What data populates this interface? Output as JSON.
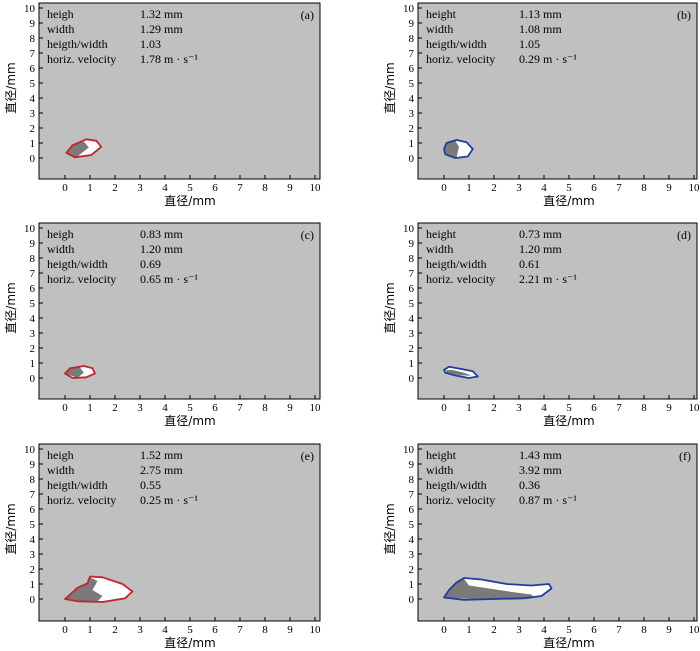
{
  "chart_data": [
    {
      "type": "scatter",
      "tag": "(a)",
      "xlabel": "直径/mm",
      "ylabel": "直径/mm",
      "xlim": [
        0,
        10
      ],
      "ylim": [
        0,
        10
      ],
      "xticks": [
        "0",
        "1",
        "2",
        "3",
        "4",
        "5",
        "6",
        "7",
        "8",
        "9",
        "10"
      ],
      "yticks": [
        "0",
        "1",
        "2",
        "3",
        "4",
        "5",
        "6",
        "7",
        "8",
        "9",
        "10"
      ],
      "info": [
        {
          "name": "heigh",
          "value": "1.32 mm"
        },
        {
          "name": "width",
          "value": "1.29 mm"
        },
        {
          "name": "heigth/width",
          "value": "1.03"
        },
        {
          "name": "horiz. velocity",
          "value": "1.78 m · s⁻¹"
        }
      ],
      "outline_color": "#c0262a",
      "outline": [
        [
          0.05,
          0.35
        ],
        [
          0.3,
          0.85
        ],
        [
          0.85,
          1.25
        ],
        [
          1.25,
          1.15
        ],
        [
          1.45,
          0.75
        ],
        [
          1.05,
          0.2
        ],
        [
          0.4,
          0.05
        ],
        [
          0.05,
          0.35
        ]
      ],
      "shaded": [
        [
          0.05,
          0.35
        ],
        [
          0.3,
          0.85
        ],
        [
          0.75,
          1.1
        ],
        [
          0.95,
          0.7
        ],
        [
          0.45,
          0.05
        ],
        [
          0.05,
          0.35
        ]
      ]
    },
    {
      "type": "scatter",
      "tag": "(b)",
      "xlabel": "直径/mm",
      "ylabel": "直径/mm",
      "xlim": [
        0,
        10
      ],
      "ylim": [
        0,
        10
      ],
      "xticks": [
        "0",
        "1",
        "2",
        "3",
        "4",
        "5",
        "6",
        "7",
        "8",
        "9",
        "10"
      ],
      "yticks": [
        "0",
        "1",
        "2",
        "3",
        "4",
        "5",
        "6",
        "7",
        "8",
        "9",
        "10"
      ],
      "info": [
        {
          "name": "height",
          "value": "1.13 mm"
        },
        {
          "name": "width",
          "value": "1.08 mm"
        },
        {
          "name": "heigth/width",
          "value": "1.05"
        },
        {
          "name": "horiz. velocity",
          "value": "0.29 m · s⁻¹"
        }
      ],
      "outline_color": "#1f3e9c",
      "outline": [
        [
          0.0,
          0.6
        ],
        [
          0.1,
          1.0
        ],
        [
          0.5,
          1.2
        ],
        [
          0.9,
          1.05
        ],
        [
          1.15,
          0.6
        ],
        [
          0.95,
          0.1
        ],
        [
          0.45,
          0.0
        ],
        [
          0.05,
          0.25
        ],
        [
          0.0,
          0.6
        ]
      ],
      "shaded": [
        [
          0.0,
          0.6
        ],
        [
          0.1,
          1.0
        ],
        [
          0.45,
          1.15
        ],
        [
          0.6,
          0.75
        ],
        [
          0.5,
          0.02
        ],
        [
          0.05,
          0.25
        ],
        [
          0.0,
          0.6
        ]
      ]
    },
    {
      "type": "scatter",
      "tag": "(c)",
      "xlabel": "直径/mm",
      "ylabel": "直径/mm",
      "xlim": [
        0,
        10
      ],
      "ylim": [
        0,
        10
      ],
      "xticks": [
        "0",
        "1",
        "2",
        "3",
        "4",
        "5",
        "6",
        "7",
        "8",
        "9",
        "10"
      ],
      "yticks": [
        "0",
        "1",
        "2",
        "3",
        "4",
        "5",
        "6",
        "7",
        "8",
        "9",
        "10"
      ],
      "info": [
        {
          "name": "heigh",
          "value": "0.83 mm"
        },
        {
          "name": "width",
          "value": "1.20 mm"
        },
        {
          "name": "heigth/width",
          "value": "0.69"
        },
        {
          "name": "horiz. velocity",
          "value": "0.65 m · s⁻¹"
        }
      ],
      "outline_color": "#c0262a",
      "outline": [
        [
          0.0,
          0.3
        ],
        [
          0.2,
          0.65
        ],
        [
          0.75,
          0.8
        ],
        [
          1.1,
          0.65
        ],
        [
          1.2,
          0.3
        ],
        [
          0.85,
          0.05
        ],
        [
          0.3,
          0.0
        ],
        [
          0.0,
          0.3
        ]
      ],
      "shaded": [
        [
          0.0,
          0.3
        ],
        [
          0.2,
          0.65
        ],
        [
          0.6,
          0.7
        ],
        [
          0.75,
          0.35
        ],
        [
          0.5,
          0.02
        ],
        [
          0.0,
          0.3
        ]
      ]
    },
    {
      "type": "scatter",
      "tag": "(d)",
      "xlabel": "直径/mm",
      "ylabel": "直径/mm",
      "xlim": [
        0,
        10
      ],
      "ylim": [
        0,
        10
      ],
      "xticks": [
        "0",
        "1",
        "2",
        "3",
        "4",
        "5",
        "6",
        "7",
        "8",
        "9",
        "10"
      ],
      "yticks": [
        "0",
        "1",
        "2",
        "3",
        "4",
        "5",
        "6",
        "7",
        "8",
        "9",
        "10"
      ],
      "info": [
        {
          "name": "height",
          "value": "0.73 mm"
        },
        {
          "name": "width",
          "value": "1.20 mm"
        },
        {
          "name": "heigth/width",
          "value": "0.61"
        },
        {
          "name": "horiz. velocity",
          "value": "2.21 m · s⁻¹"
        }
      ],
      "outline_color": "#1f3e9c",
      "outline": [
        [
          0.0,
          0.55
        ],
        [
          0.2,
          0.75
        ],
        [
          0.7,
          0.6
        ],
        [
          1.15,
          0.45
        ],
        [
          1.35,
          0.1
        ],
        [
          1.0,
          0.0
        ],
        [
          0.5,
          0.15
        ],
        [
          0.05,
          0.35
        ],
        [
          0.0,
          0.55
        ]
      ],
      "shaded": [
        [
          0.05,
          0.5
        ],
        [
          0.3,
          0.55
        ],
        [
          0.8,
          0.35
        ],
        [
          1.1,
          0.15
        ],
        [
          0.6,
          0.18
        ],
        [
          0.1,
          0.38
        ],
        [
          0.05,
          0.5
        ]
      ]
    },
    {
      "type": "scatter",
      "tag": "(e)",
      "xlabel": "直径/mm",
      "ylabel": "直径/mm",
      "xlim": [
        0,
        10
      ],
      "ylim": [
        0,
        10
      ],
      "xticks": [
        "0",
        "1",
        "2",
        "3",
        "4",
        "5",
        "6",
        "7",
        "8",
        "9",
        "10"
      ],
      "yticks": [
        "0",
        "1",
        "2",
        "3",
        "4",
        "5",
        "6",
        "7",
        "8",
        "9",
        "10"
      ],
      "info": [
        {
          "name": "heigh",
          "value": "1.52 mm"
        },
        {
          "name": "width",
          "value": "2.75 mm"
        },
        {
          "name": "heigth/width",
          "value": "0.55"
        },
        {
          "name": "horiz. velocity",
          "value": "0.25 m · s⁻¹"
        }
      ],
      "outline_color": "#c0262a",
      "outline": [
        [
          0.0,
          0.0
        ],
        [
          0.2,
          0.3
        ],
        [
          0.5,
          0.75
        ],
        [
          0.9,
          1.05
        ],
        [
          1.0,
          1.5
        ],
        [
          1.5,
          1.45
        ],
        [
          2.3,
          1.0
        ],
        [
          2.7,
          0.5
        ],
        [
          2.4,
          0.05
        ],
        [
          1.5,
          -0.2
        ],
        [
          0.5,
          -0.15
        ],
        [
          0.0,
          0.0
        ]
      ],
      "shaded": [
        [
          0.0,
          0.0
        ],
        [
          0.2,
          0.3
        ],
        [
          0.5,
          0.75
        ],
        [
          0.9,
          1.05
        ],
        [
          1.0,
          1.45
        ],
        [
          1.3,
          1.2
        ],
        [
          1.1,
          0.6
        ],
        [
          1.5,
          0.2
        ],
        [
          1.3,
          -0.15
        ],
        [
          0.5,
          -0.15
        ],
        [
          0.0,
          0.0
        ]
      ]
    },
    {
      "type": "scatter",
      "tag": "(f)",
      "xlabel": "直径/mm",
      "ylabel": "直径/mm",
      "xlim": [
        0,
        10
      ],
      "ylim": [
        0,
        10
      ],
      "xticks": [
        "0",
        "1",
        "2",
        "3",
        "4",
        "5",
        "6",
        "7",
        "8",
        "9",
        "10"
      ],
      "yticks": [
        "0",
        "1",
        "2",
        "3",
        "4",
        "5",
        "6",
        "7",
        "8",
        "9",
        "10"
      ],
      "info": [
        {
          "name": "height",
          "value": "1.43 mm"
        },
        {
          "name": "width",
          "value": "3.92 mm"
        },
        {
          "name": "heigth/width",
          "value": "0.36"
        },
        {
          "name": "horiz. velocity",
          "value": "0.87 m · s⁻¹"
        }
      ],
      "outline_color": "#1f3e9c",
      "outline": [
        [
          0.0,
          0.1
        ],
        [
          0.2,
          0.6
        ],
        [
          0.5,
          1.1
        ],
        [
          0.8,
          1.4
        ],
        [
          1.5,
          1.3
        ],
        [
          2.5,
          1.0
        ],
        [
          3.5,
          0.9
        ],
        [
          4.2,
          1.0
        ],
        [
          4.3,
          0.7
        ],
        [
          3.9,
          0.2
        ],
        [
          3.2,
          0.05
        ],
        [
          2.0,
          0.0
        ],
        [
          0.8,
          -0.05
        ],
        [
          0.0,
          0.1
        ]
      ],
      "shaded": [
        [
          0.0,
          0.1
        ],
        [
          0.2,
          0.6
        ],
        [
          0.5,
          1.1
        ],
        [
          0.8,
          1.35
        ],
        [
          1.0,
          0.9
        ],
        [
          1.8,
          0.7
        ],
        [
          2.8,
          0.45
        ],
        [
          3.5,
          0.3
        ],
        [
          3.6,
          0.1
        ],
        [
          2.5,
          0.02
        ],
        [
          1.2,
          0.0
        ],
        [
          0.0,
          0.1
        ]
      ]
    }
  ]
}
